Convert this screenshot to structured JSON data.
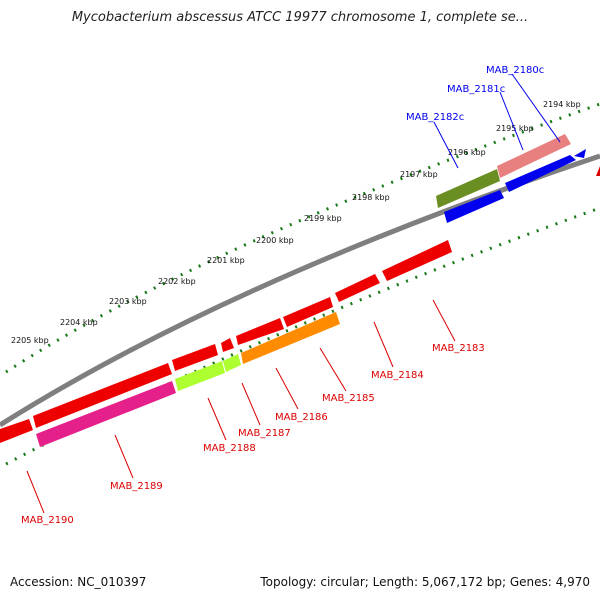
{
  "title": "Mycobacterium abscessus ATCC 19977 chromosome 1, complete se...",
  "footer": {
    "accession": "Accession: NC_010397",
    "summary": "Topology: circular; Length: 5,067,172 bp; Genes: 4,970"
  },
  "ticks": [
    "2194 kbp",
    "2195 kbp",
    "2196 kbp",
    "2197 kbp",
    "2198 kbp",
    "2199 kbp",
    "2200 kbp",
    "2201 kbp",
    "2202 kbp",
    "2203 kbp",
    "2204 kbp",
    "2205 kbp"
  ],
  "genes": {
    "forward": [
      {
        "label": "MAB_2180c",
        "color": "#0000ee"
      },
      {
        "label": "MAB_2181c",
        "color": "#0000ee"
      },
      {
        "label": "MAB_2182c",
        "color": "#0000ee"
      }
    ],
    "reverse": [
      {
        "label": "MAB_2183",
        "color": "#dd0000"
      },
      {
        "label": "MAB_2184",
        "color": "#dd0000"
      },
      {
        "label": "MAB_2185",
        "color": "#dd0000"
      },
      {
        "label": "MAB_2186",
        "color": "#dd0000"
      },
      {
        "label": "MAB_2187",
        "color": "#dd0000"
      },
      {
        "label": "MAB_2188",
        "color": "#dd0000"
      },
      {
        "label": "MAB_2189",
        "color": "#dd0000"
      },
      {
        "label": "MAB_2190",
        "color": "#dd0000"
      }
    ]
  }
}
